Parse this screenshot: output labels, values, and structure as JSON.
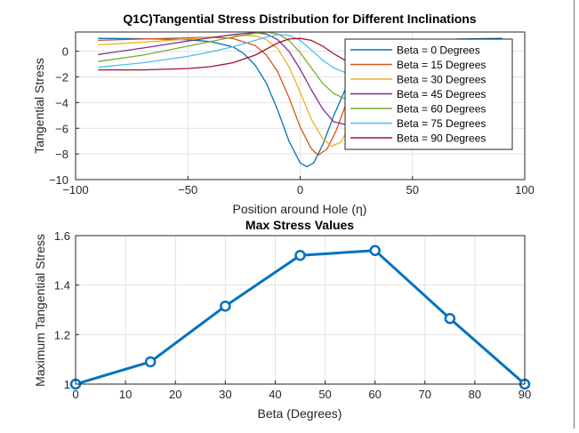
{
  "chart_data": [
    {
      "type": "line",
      "title": "Q1C)Tangential Stress Distribution for Different Inclinations",
      "xlabel": "Position  around  Hole  (η)",
      "ylabel": "Tangential Stress",
      "xlim": [
        -100,
        100
      ],
      "ylim": [
        -10,
        1.5
      ],
      "xticks": [
        -100,
        -50,
        0,
        50,
        100
      ],
      "yticks": [
        0,
        -2,
        -4,
        -6,
        -8,
        -10
      ],
      "grid": true,
      "legend_position": "top-right",
      "series": [
        {
          "name": "Beta = 0 Degrees",
          "color": "#0072BD",
          "x": [
            -90,
            -70,
            -50,
            -40,
            -30,
            -25,
            -20,
            -15,
            -10,
            -5,
            0,
            3,
            6,
            10,
            15,
            20,
            25,
            30,
            40,
            50,
            70,
            90
          ],
          "y": [
            1.0,
            0.98,
            0.9,
            0.75,
            0.35,
            -0.2,
            -1.1,
            -2.5,
            -4.6,
            -7.0,
            -8.7,
            -9.0,
            -8.7,
            -7.3,
            -5.0,
            -3.0,
            -1.6,
            -0.6,
            0.3,
            0.7,
            0.95,
            1.0
          ]
        },
        {
          "name": "Beta = 15 Degrees",
          "color": "#D95319",
          "x": [
            -90,
            -70,
            -50,
            -40,
            -30,
            -20,
            -15,
            -10,
            -5,
            0,
            5,
            8,
            12,
            16,
            20,
            25,
            30,
            40,
            50,
            70,
            90
          ],
          "y": [
            0.85,
            0.95,
            1.05,
            1.1,
            1.0,
            0.45,
            -0.3,
            -1.6,
            -3.6,
            -5.9,
            -7.6,
            -8.1,
            -7.6,
            -6.2,
            -4.3,
            -2.6,
            -1.3,
            -0.1,
            0.4,
            0.7,
            0.8
          ]
        },
        {
          "name": "Beta = 30 Degrees",
          "color": "#EDB120",
          "x": [
            -90,
            -70,
            -50,
            -40,
            -30,
            -20,
            -15,
            -10,
            -5,
            0,
            5,
            10,
            14,
            18,
            22,
            26,
            30,
            40,
            50,
            70,
            90
          ],
          "y": [
            0.5,
            0.7,
            0.95,
            1.1,
            1.25,
            1.2,
            0.9,
            0.2,
            -1.2,
            -3.2,
            -5.3,
            -6.8,
            -7.4,
            -7.1,
            -5.9,
            -4.2,
            -2.7,
            -0.8,
            0.1,
            0.4,
            0.45
          ]
        },
        {
          "name": "Beta = 45 Degrees",
          "color": "#7E2F8E",
          "x": [
            -90,
            -70,
            -50,
            -40,
            -30,
            -20,
            -15,
            -10,
            -5,
            0,
            5,
            10,
            15,
            20,
            25,
            30,
            35,
            40,
            50,
            70,
            90
          ],
          "y": [
            -0.25,
            0.25,
            0.8,
            1.05,
            1.3,
            1.45,
            1.35,
            0.9,
            0.0,
            -1.4,
            -3.0,
            -4.5,
            -5.5,
            -5.7,
            -5.3,
            -4.2,
            -2.9,
            -1.8,
            -0.6,
            0.0,
            0.0
          ]
        },
        {
          "name": "Beta = 60 Degrees",
          "color": "#77AC30",
          "x": [
            -90,
            -70,
            -50,
            -40,
            -30,
            -20,
            -15,
            -10,
            -5,
            0,
            5,
            10,
            15,
            20,
            25,
            30,
            35,
            40,
            50,
            70,
            90
          ],
          "y": [
            -0.8,
            -0.3,
            0.4,
            0.75,
            1.1,
            1.4,
            1.5,
            1.35,
            0.85,
            -0.1,
            -1.3,
            -2.5,
            -3.3,
            -3.7,
            -3.5,
            -3.0,
            -2.4,
            -1.9,
            -1.2,
            -0.6,
            -0.55
          ]
        },
        {
          "name": "Beta = 75 Degrees",
          "color": "#4DBEEE",
          "x": [
            -90,
            -70,
            -50,
            -40,
            -30,
            -20,
            -15,
            -10,
            -5,
            0,
            5,
            10,
            15,
            20,
            25,
            30,
            40,
            50,
            70,
            90
          ],
          "y": [
            -1.25,
            -0.9,
            -0.4,
            -0.05,
            0.35,
            0.85,
            1.1,
            1.3,
            1.25,
            0.85,
            0.1,
            -0.7,
            -1.3,
            -1.65,
            -1.75,
            -1.65,
            -1.45,
            -1.3,
            -1.2,
            -1.15
          ]
        },
        {
          "name": "Beta = 90 Degrees",
          "color": "#A2142F",
          "x": [
            -90,
            -70,
            -50,
            -40,
            -30,
            -20,
            -10,
            -5,
            0,
            5,
            10,
            15,
            20,
            30,
            50,
            70,
            90
          ],
          "y": [
            -1.45,
            -1.45,
            -1.35,
            -1.2,
            -0.9,
            -0.3,
            0.65,
            0.95,
            1.0,
            0.85,
            0.4,
            -0.2,
            -0.7,
            -1.2,
            -1.45,
            -1.5,
            -1.5
          ]
        }
      ]
    },
    {
      "type": "line",
      "title": "Max Stress Values",
      "xlabel": "Beta (Degrees)",
      "ylabel": "Maximum Tangential Stress",
      "xlim": [
        0,
        90
      ],
      "ylim": [
        1,
        1.6
      ],
      "xticks": [
        0,
        10,
        20,
        30,
        40,
        50,
        60,
        70,
        80,
        90
      ],
      "yticks": [
        1,
        1.2,
        1.4,
        1.6
      ],
      "grid": true,
      "markers": "circle",
      "series": [
        {
          "color": "#0072BD",
          "x": [
            0,
            15,
            30,
            45,
            60,
            75,
            90
          ],
          "y": [
            1.0,
            1.09,
            1.315,
            1.52,
            1.54,
            1.265,
            1.0
          ]
        }
      ]
    }
  ]
}
